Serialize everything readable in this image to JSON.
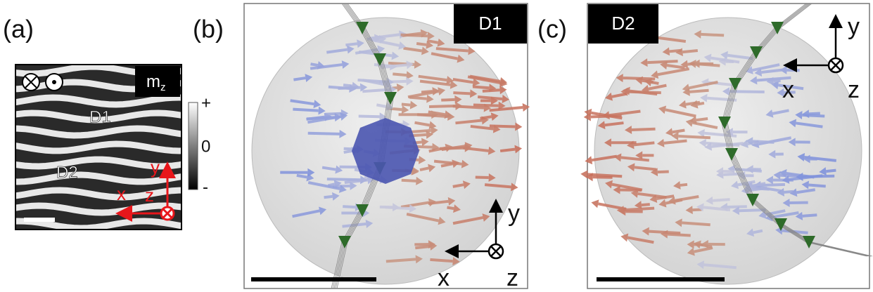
{
  "panels": [
    {
      "label": "(a)",
      "map_label": {
        "base": "m",
        "sub": "z"
      },
      "domains": [
        "D1",
        "D2"
      ],
      "colorbar": [
        "+",
        "0",
        "-"
      ],
      "axes": [
        "x",
        "y",
        "z"
      ]
    },
    {
      "label": "(b)",
      "tag": "D1",
      "axes": [
        "x",
        "y",
        "z"
      ]
    },
    {
      "label": "(c)",
      "tag": "D2",
      "axes": [
        "x",
        "y",
        "z"
      ]
    }
  ]
}
